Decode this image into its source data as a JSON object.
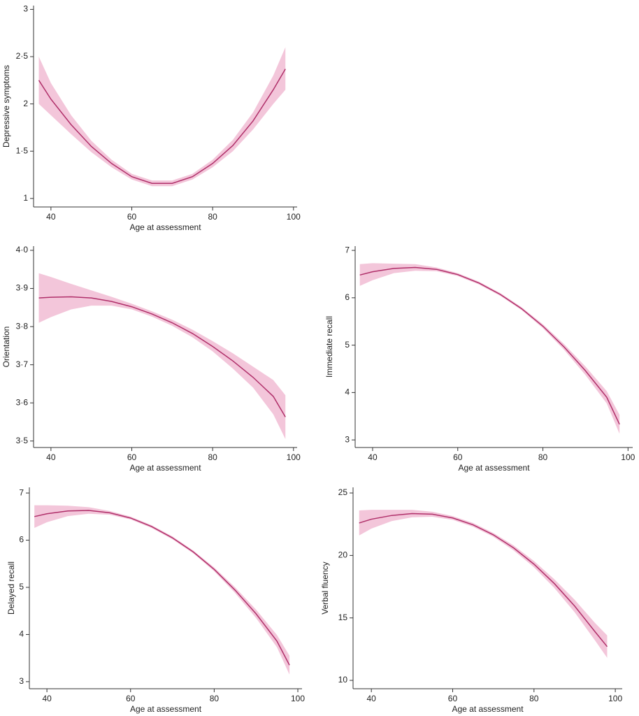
{
  "chart_data": [
    {
      "type": "line",
      "x_label": "Age at assessment",
      "y_label": "Depressive symptoms",
      "x": [
        37,
        40,
        45,
        50,
        55,
        60,
        65,
        70,
        75,
        80,
        85,
        90,
        95,
        98
      ],
      "series": [
        {
          "color": "#b0306a",
          "band_color": "#f3c6da",
          "values": [
            2.25,
            2.05,
            1.78,
            1.55,
            1.37,
            1.23,
            1.16,
            1.16,
            1.23,
            1.37,
            1.56,
            1.82,
            2.15,
            2.37
          ],
          "lower": [
            2.0,
            1.88,
            1.68,
            1.49,
            1.33,
            1.2,
            1.13,
            1.13,
            1.2,
            1.33,
            1.5,
            1.73,
            2.0,
            2.15
          ],
          "upper": [
            2.5,
            2.22,
            1.88,
            1.61,
            1.41,
            1.26,
            1.19,
            1.19,
            1.26,
            1.41,
            1.62,
            1.91,
            2.3,
            2.6
          ]
        }
      ],
      "xlim": [
        35.7,
        100.9
      ],
      "xticks": [
        40,
        60,
        80,
        100
      ],
      "ylim": [
        0.91,
        3.04
      ],
      "yticks": [
        1,
        {
          "value": 1.5,
          "label": "1·5"
        },
        2,
        {
          "value": 2.5,
          "label": "2·5"
        },
        3
      ]
    },
    {
      "type": "line",
      "x_label": "Age at assessment",
      "y_label": "Orientation",
      "x": [
        37,
        40,
        45,
        50,
        55,
        60,
        65,
        70,
        75,
        80,
        85,
        90,
        95,
        98
      ],
      "series": [
        {
          "color": "#b0306a",
          "band_color": "#f3c6da",
          "values": [
            3.875,
            3.877,
            3.878,
            3.875,
            3.866,
            3.852,
            3.833,
            3.81,
            3.782,
            3.748,
            3.71,
            3.667,
            3.617,
            3.563
          ],
          "lower": [
            3.81,
            3.825,
            3.845,
            3.855,
            3.855,
            3.845,
            3.826,
            3.802,
            3.772,
            3.735,
            3.69,
            3.64,
            3.57,
            3.505
          ],
          "upper": [
            3.94,
            3.93,
            3.912,
            3.895,
            3.878,
            3.86,
            3.84,
            3.818,
            3.792,
            3.762,
            3.73,
            3.695,
            3.66,
            3.62
          ]
        }
      ],
      "xlim": [
        35.7,
        100.9
      ],
      "xticks": [
        40,
        60,
        80,
        100
      ],
      "ylim": [
        3.483,
        4.011
      ],
      "yticks": [
        {
          "value": 3.5,
          "label": "3·5"
        },
        {
          "value": 3.6,
          "label": "3·6"
        },
        {
          "value": 3.7,
          "label": "3·7"
        },
        {
          "value": 3.8,
          "label": "3·8"
        },
        {
          "value": 3.9,
          "label": "3·9"
        },
        {
          "value": 4.0,
          "label": "4·0"
        }
      ]
    },
    {
      "type": "line",
      "x_label": "Age at assessment",
      "y_label": "Immediate recall",
      "x": [
        37,
        40,
        45,
        50,
        55,
        60,
        65,
        70,
        75,
        80,
        85,
        90,
        95,
        98
      ],
      "series": [
        {
          "color": "#b0306a",
          "band_color": "#f3c6da",
          "values": [
            6.48,
            6.55,
            6.62,
            6.64,
            6.6,
            6.49,
            6.31,
            6.07,
            5.77,
            5.4,
            4.96,
            4.46,
            3.9,
            3.33
          ],
          "lower": [
            6.25,
            6.37,
            6.52,
            6.57,
            6.56,
            6.46,
            6.28,
            6.04,
            5.74,
            5.36,
            4.9,
            4.37,
            3.77,
            3.13
          ],
          "upper": [
            6.71,
            6.73,
            6.72,
            6.71,
            6.64,
            6.52,
            6.34,
            6.1,
            5.8,
            5.44,
            5.02,
            4.55,
            4.03,
            3.53
          ]
        }
      ],
      "xlim": [
        35.9,
        101.1
      ],
      "xticks": [
        40,
        60,
        80,
        100
      ],
      "ylim": [
        2.84,
        7.09
      ],
      "yticks": [
        3,
        4,
        5,
        6,
        7
      ]
    },
    {
      "type": "line",
      "x_label": "Age at assessment",
      "y_label": "Delayed recall",
      "x": [
        37,
        40,
        45,
        50,
        55,
        60,
        65,
        70,
        75,
        80,
        85,
        90,
        95,
        98
      ],
      "series": [
        {
          "color": "#b0306a",
          "band_color": "#f3c6da",
          "values": [
            6.5,
            6.56,
            6.62,
            6.63,
            6.58,
            6.47,
            6.29,
            6.05,
            5.75,
            5.38,
            4.94,
            4.44,
            3.86,
            3.35
          ],
          "lower": [
            6.26,
            6.38,
            6.51,
            6.56,
            6.54,
            6.44,
            6.26,
            6.02,
            5.72,
            5.34,
            4.88,
            4.35,
            3.73,
            3.15
          ],
          "upper": [
            6.74,
            6.74,
            6.73,
            6.7,
            6.62,
            6.5,
            6.32,
            6.08,
            5.78,
            5.42,
            5.0,
            4.53,
            3.99,
            3.55
          ]
        }
      ],
      "xlim": [
        35.8,
        101
      ],
      "xticks": [
        40,
        60,
        80,
        100
      ],
      "ylim": [
        2.85,
        7.12
      ],
      "yticks": [
        3,
        4,
        5,
        6,
        7
      ]
    },
    {
      "type": "line",
      "x_label": "Age at assessment",
      "y_label": "Verbal fluency",
      "x": [
        37,
        40,
        45,
        50,
        55,
        60,
        65,
        70,
        75,
        80,
        85,
        90,
        95,
        98
      ],
      "series": [
        {
          "color": "#b0306a",
          "band_color": "#f3c6da",
          "values": [
            22.6,
            22.9,
            23.2,
            23.35,
            23.3,
            23.0,
            22.45,
            21.65,
            20.6,
            19.3,
            17.75,
            15.95,
            13.9,
            12.7
          ],
          "lower": [
            21.6,
            22.15,
            22.75,
            23.05,
            23.1,
            22.85,
            22.3,
            21.5,
            20.4,
            19.05,
            17.4,
            15.45,
            13.2,
            11.8
          ],
          "upper": [
            23.6,
            23.65,
            23.65,
            23.65,
            23.5,
            23.15,
            22.6,
            21.8,
            20.8,
            19.55,
            18.1,
            16.45,
            14.6,
            13.6
          ]
        }
      ],
      "xlim": [
        35.5,
        101.7
      ],
      "xticks": [
        40,
        60,
        80,
        100
      ],
      "ylim": [
        9.33,
        25.45
      ],
      "yticks": [
        10,
        15,
        20,
        25
      ]
    }
  ]
}
